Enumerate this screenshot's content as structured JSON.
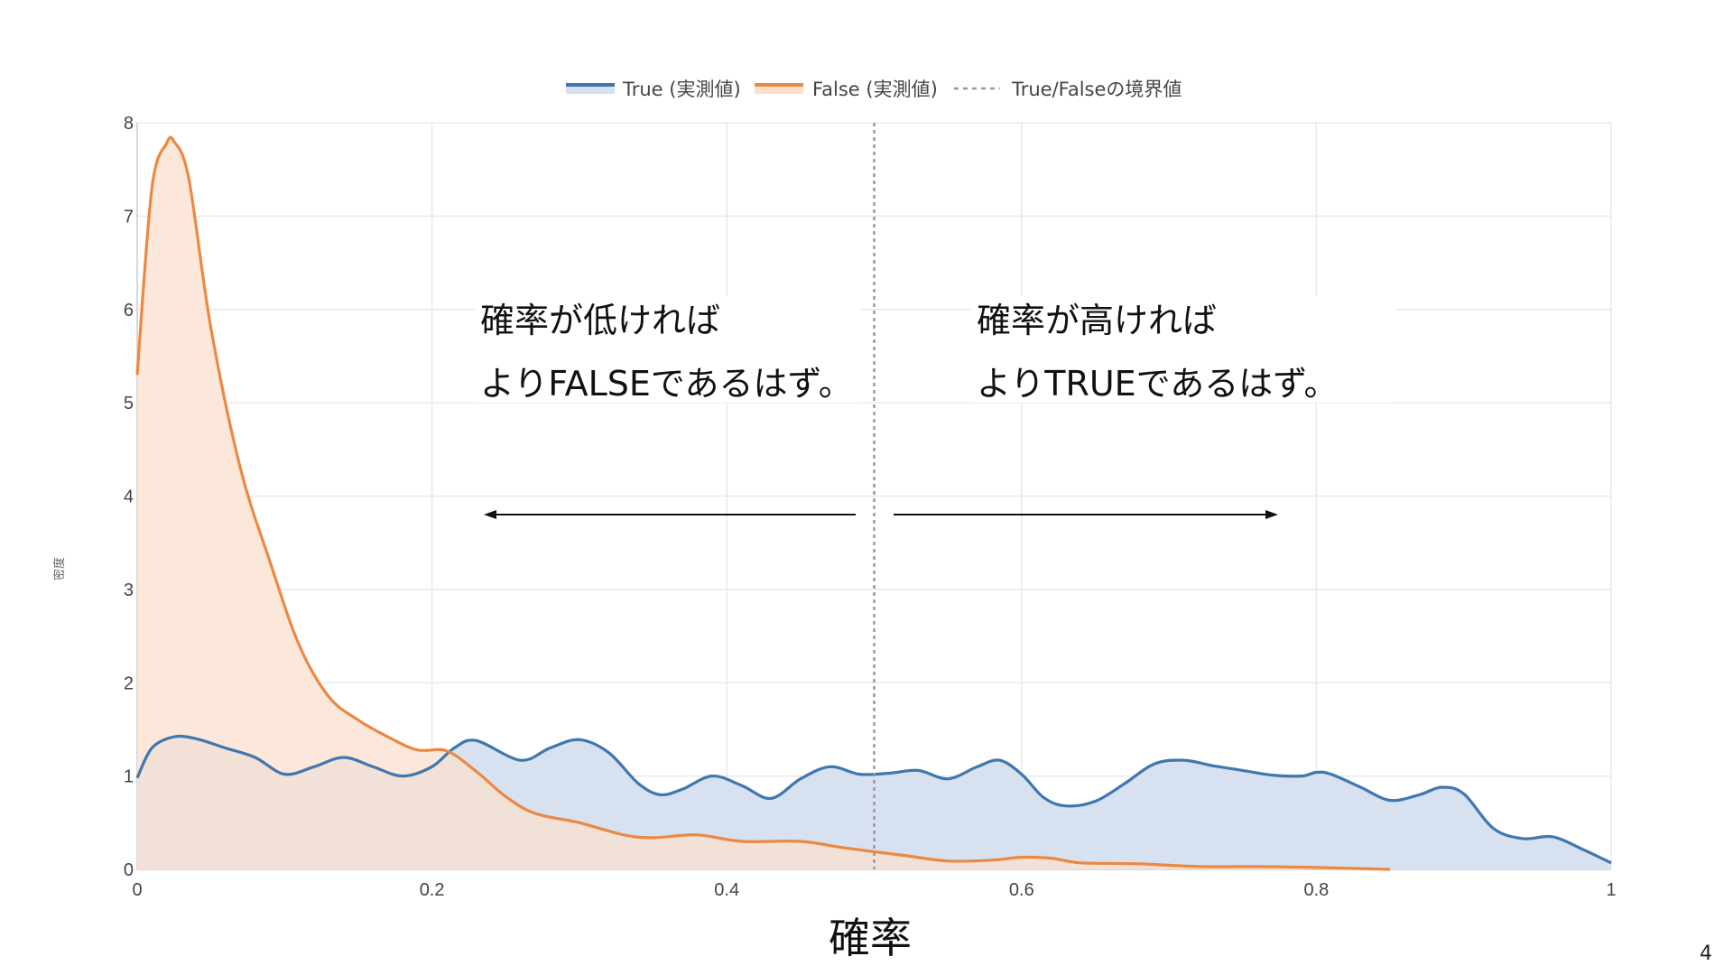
{
  "page_number": "4",
  "annotations": {
    "left": {
      "line1": "確率が低ければ",
      "line2": "よりFALSEであるはず。"
    },
    "right": {
      "line1": "確率が高ければ",
      "line2": "よりTRUEであるはず。"
    }
  },
  "colors": {
    "true_line": "#3F77AF",
    "true_fill": "#D7E1EF",
    "false_line": "#EC8842",
    "false_fill": "#FBE0CF",
    "threshold": "#999999",
    "grid": "#E6E6E6",
    "arrow": "#111111"
  },
  "chart_data": {
    "type": "area",
    "xlabel": "確率",
    "ylabel": "密度",
    "xlim": [
      0,
      1
    ],
    "ylim": [
      0,
      8
    ],
    "x_ticks": [
      "0",
      "0.2",
      "0.4",
      "0.6",
      "0.8",
      "1"
    ],
    "y_ticks": [
      "0",
      "1",
      "2",
      "3",
      "4",
      "5",
      "6",
      "7",
      "8"
    ],
    "grid": true,
    "legend_position": "top-center",
    "legend": [
      "True (実測値)",
      "False (実測値)",
      "True/Falseの境界値"
    ],
    "threshold": 0.5,
    "series": [
      {
        "name": "True (実測値)",
        "x": [
          0,
          0.01,
          0.025,
          0.04,
          0.06,
          0.08,
          0.1,
          0.12,
          0.14,
          0.16,
          0.18,
          0.2,
          0.215,
          0.23,
          0.26,
          0.28,
          0.3,
          0.32,
          0.34,
          0.355,
          0.37,
          0.39,
          0.41,
          0.43,
          0.45,
          0.47,
          0.49,
          0.51,
          0.53,
          0.55,
          0.57,
          0.585,
          0.6,
          0.615,
          0.63,
          0.65,
          0.67,
          0.69,
          0.71,
          0.73,
          0.75,
          0.77,
          0.79,
          0.8,
          0.81,
          0.83,
          0.85,
          0.87,
          0.885,
          0.9,
          0.92,
          0.94,
          0.96,
          0.98,
          1.0
        ],
        "y": [
          0.98,
          1.3,
          1.42,
          1.4,
          1.3,
          1.2,
          1.02,
          1.1,
          1.2,
          1.1,
          1.0,
          1.1,
          1.3,
          1.38,
          1.17,
          1.3,
          1.39,
          1.25,
          0.92,
          0.8,
          0.86,
          1.0,
          0.9,
          0.76,
          0.97,
          1.1,
          1.02,
          1.03,
          1.06,
          0.97,
          1.1,
          1.17,
          1.02,
          0.77,
          0.68,
          0.73,
          0.92,
          1.13,
          1.17,
          1.11,
          1.06,
          1.01,
          1.0,
          1.04,
          1.02,
          0.88,
          0.74,
          0.8,
          0.88,
          0.81,
          0.44,
          0.33,
          0.35,
          0.22,
          0.07
        ]
      },
      {
        "name": "False (実測値)",
        "x": [
          0,
          0.01,
          0.02,
          0.025,
          0.035,
          0.05,
          0.07,
          0.09,
          0.11,
          0.13,
          0.15,
          0.17,
          0.19,
          0.21,
          0.23,
          0.25,
          0.27,
          0.3,
          0.33,
          0.35,
          0.38,
          0.41,
          0.45,
          0.48,
          0.52,
          0.55,
          0.58,
          0.6,
          0.62,
          0.64,
          0.68,
          0.72,
          0.76,
          0.8,
          0.85
        ],
        "y": [
          5.3,
          7.3,
          7.78,
          7.8,
          7.4,
          5.8,
          4.3,
          3.3,
          2.4,
          1.85,
          1.6,
          1.42,
          1.28,
          1.27,
          1.05,
          0.78,
          0.6,
          0.5,
          0.37,
          0.34,
          0.37,
          0.3,
          0.3,
          0.23,
          0.15,
          0.09,
          0.1,
          0.13,
          0.12,
          0.07,
          0.06,
          0.03,
          0.03,
          0.02,
          0.0
        ]
      }
    ]
  }
}
